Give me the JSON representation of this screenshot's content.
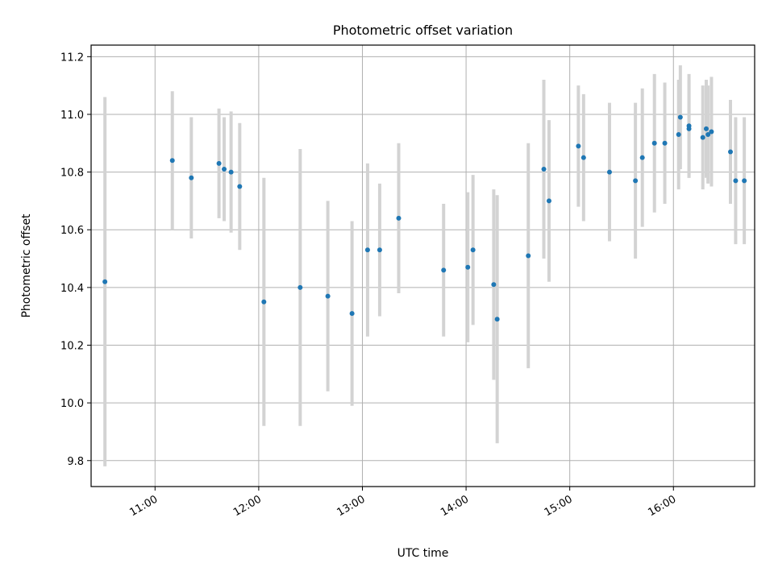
{
  "chart_data": {
    "type": "scatter",
    "title": "Photometric offset variation",
    "xlabel": "UTC time",
    "ylabel": "Photometric offset",
    "xlim": [
      "10:23",
      "16:47"
    ],
    "ylim": [
      9.71,
      11.24
    ],
    "x_ticks": [
      "11:00",
      "12:00",
      "13:00",
      "14:00",
      "15:00",
      "16:00"
    ],
    "y_ticks": [
      "9.8",
      "10.0",
      "10.2",
      "10.4",
      "10.6",
      "10.8",
      "11.0",
      "11.2"
    ],
    "grid": true,
    "colors": {
      "points": "#1f77b4",
      "errorbars": "#d3d3d3",
      "grid": "#b0b0b0"
    },
    "points": [
      {
        "x": "10:31",
        "y": 10.42,
        "err": 0.64
      },
      {
        "x": "11:10",
        "y": 10.84,
        "err": 0.24
      },
      {
        "x": "11:21",
        "y": 10.78,
        "err": 0.21
      },
      {
        "x": "11:37",
        "y": 10.83,
        "err": 0.19
      },
      {
        "x": "11:40",
        "y": 10.81,
        "err": 0.18
      },
      {
        "x": "11:44",
        "y": 10.8,
        "err": 0.21
      },
      {
        "x": "11:49",
        "y": 10.75,
        "err": 0.22
      },
      {
        "x": "12:03",
        "y": 10.35,
        "err": 0.43
      },
      {
        "x": "12:24",
        "y": 10.4,
        "err": 0.48
      },
      {
        "x": "12:40",
        "y": 10.37,
        "err": 0.33
      },
      {
        "x": "12:54",
        "y": 10.31,
        "err": 0.32
      },
      {
        "x": "13:03",
        "y": 10.53,
        "err": 0.3
      },
      {
        "x": "13:10",
        "y": 10.53,
        "err": 0.23
      },
      {
        "x": "13:21",
        "y": 10.64,
        "err": 0.26
      },
      {
        "x": "13:47",
        "y": 10.46,
        "err": 0.23
      },
      {
        "x": "14:01",
        "y": 10.47,
        "err": 0.26
      },
      {
        "x": "14:04",
        "y": 10.53,
        "err": 0.26
      },
      {
        "x": "14:16",
        "y": 10.41,
        "err": 0.33
      },
      {
        "x": "14:18",
        "y": 10.29,
        "err": 0.43
      },
      {
        "x": "14:36",
        "y": 10.51,
        "err": 0.39
      },
      {
        "x": "14:45",
        "y": 10.81,
        "err": 0.31
      },
      {
        "x": "14:48",
        "y": 10.7,
        "err": 0.28
      },
      {
        "x": "15:05",
        "y": 10.89,
        "err": 0.21
      },
      {
        "x": "15:08",
        "y": 10.85,
        "err": 0.22
      },
      {
        "x": "15:23",
        "y": 10.8,
        "err": 0.24
      },
      {
        "x": "15:38",
        "y": 10.77,
        "err": 0.27
      },
      {
        "x": "15:42",
        "y": 10.85,
        "err": 0.24
      },
      {
        "x": "15:49",
        "y": 10.9,
        "err": 0.24
      },
      {
        "x": "15:55",
        "y": 10.9,
        "err": 0.21
      },
      {
        "x": "16:03",
        "y": 10.93,
        "err": 0.19
      },
      {
        "x": "16:04",
        "y": 10.99,
        "err": 0.18
      },
      {
        "x": "16:09",
        "y": 10.96,
        "err": 0.18
      },
      {
        "x": "16:09",
        "y": 10.95,
        "err": 0.17
      },
      {
        "x": "16:17",
        "y": 10.92,
        "err": 0.18
      },
      {
        "x": "16:19",
        "y": 10.95,
        "err": 0.17
      },
      {
        "x": "16:20",
        "y": 10.93,
        "err": 0.17
      },
      {
        "x": "16:22",
        "y": 10.94,
        "err": 0.19
      },
      {
        "x": "16:33",
        "y": 10.87,
        "err": 0.18
      },
      {
        "x": "16:36",
        "y": 10.77,
        "err": 0.22
      },
      {
        "x": "16:41",
        "y": 10.77,
        "err": 0.22
      }
    ]
  }
}
